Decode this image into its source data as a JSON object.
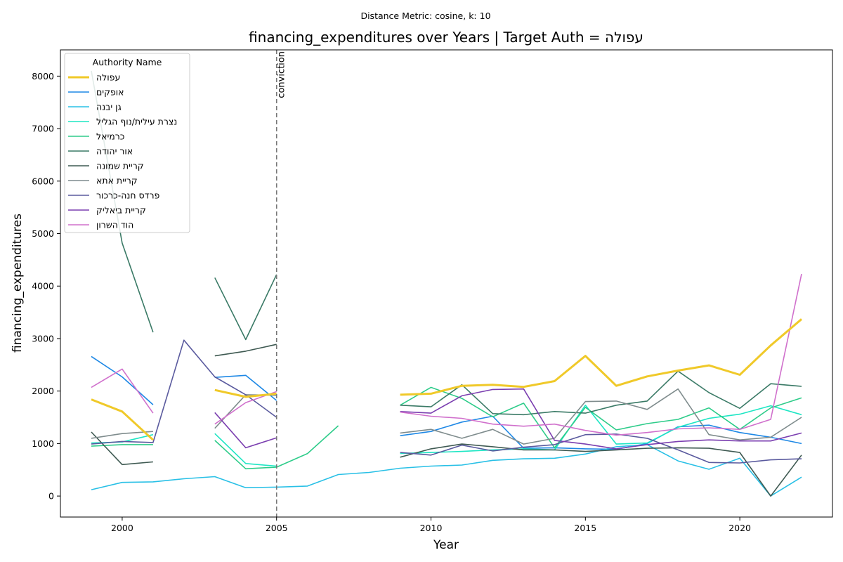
{
  "chart_data": {
    "type": "line",
    "suptitle": "Distance Metric: cosine, k: 10",
    "title": "financing_expenditures over Years | Target Auth = עפולה",
    "xlabel": "Year",
    "ylabel": "financing_expenditures",
    "xlim": [
      1998,
      2023
    ],
    "ylim": [
      -400,
      8500
    ],
    "x_ticks": [
      2000,
      2005,
      2010,
      2015,
      2020
    ],
    "y_ticks": [
      0,
      1000,
      2000,
      3000,
      4000,
      5000,
      6000,
      7000,
      8000
    ],
    "grid": false,
    "legend": {
      "title": "Authority Name",
      "position": "top-left"
    },
    "annotation": {
      "x": 2005,
      "label": "conviction",
      "style": "dashed"
    },
    "series": [
      {
        "name": "עפולה",
        "color": "#f0c929",
        "width": 3,
        "points": [
          [
            1999,
            1840
          ],
          [
            2000,
            1610
          ],
          [
            2001,
            1070
          ],
          [
            null,
            null
          ],
          [
            2003,
            2020
          ],
          [
            2004,
            1890
          ],
          [
            2005,
            1950
          ],
          [
            null,
            null
          ],
          [
            2009,
            1930
          ],
          [
            2010,
            1950
          ],
          [
            2011,
            2100
          ],
          [
            2012,
            2120
          ],
          [
            2013,
            2080
          ],
          [
            2014,
            2190
          ],
          [
            2015,
            2670
          ],
          [
            2016,
            2100
          ],
          [
            2017,
            2280
          ],
          [
            2018,
            2390
          ],
          [
            2019,
            2490
          ],
          [
            2020,
            2310
          ],
          [
            2021,
            2870
          ],
          [
            2022,
            3370
          ]
        ]
      },
      {
        "name": "אופקים",
        "color": "#1e88e5",
        "width": 1.6,
        "points": [
          [
            1999,
            2660
          ],
          [
            2000,
            2270
          ],
          [
            2001,
            1740
          ],
          [
            null,
            null
          ],
          [
            2003,
            2260
          ],
          [
            2004,
            2300
          ],
          [
            2005,
            1820
          ],
          [
            null,
            null
          ],
          [
            2009,
            1150
          ],
          [
            2010,
            1230
          ],
          [
            2011,
            1410
          ],
          [
            2012,
            1520
          ],
          [
            2013,
            910
          ],
          [
            2014,
            920
          ],
          [
            2015,
            900
          ],
          [
            2016,
            890
          ],
          [
            2017,
            1000
          ],
          [
            2018,
            1320
          ],
          [
            2019,
            1350
          ],
          [
            2020,
            1210
          ],
          [
            2021,
            1120
          ],
          [
            2022,
            1000
          ]
        ]
      },
      {
        "name": "גן יבנה",
        "color": "#29c0e6",
        "width": 1.6,
        "points": [
          [
            1999,
            120
          ],
          [
            2000,
            260
          ],
          [
            2001,
            270
          ],
          [
            2002,
            330
          ],
          [
            2003,
            370
          ],
          [
            2004,
            160
          ],
          [
            2005,
            170
          ],
          [
            2006,
            190
          ],
          [
            2007,
            410
          ],
          [
            2008,
            450
          ],
          [
            2009,
            530
          ],
          [
            2010,
            570
          ],
          [
            2011,
            590
          ],
          [
            2012,
            680
          ],
          [
            2013,
            710
          ],
          [
            2014,
            720
          ],
          [
            2015,
            800
          ],
          [
            2016,
            940
          ],
          [
            2017,
            980
          ],
          [
            2018,
            670
          ],
          [
            2019,
            510
          ],
          [
            2020,
            720
          ],
          [
            2021,
            0
          ],
          [
            2022,
            360
          ]
        ]
      },
      {
        "name": "נצרת עילית/נוף הגליל",
        "color": "#1ee6c4",
        "width": 1.6,
        "points": [
          [
            1999,
            1010
          ],
          [
            2000,
            1030
          ],
          [
            2001,
            1170
          ],
          [
            null,
            null
          ],
          [
            2003,
            1190
          ],
          [
            2004,
            620
          ],
          [
            2005,
            570
          ],
          [
            null,
            null
          ],
          [
            2009,
            810
          ],
          [
            2010,
            830
          ],
          [
            2011,
            850
          ],
          [
            2012,
            880
          ],
          [
            2013,
            900
          ],
          [
            2014,
            880
          ],
          [
            2015,
            1730
          ],
          [
            2016,
            990
          ],
          [
            2017,
            1010
          ],
          [
            2018,
            1310
          ],
          [
            2019,
            1480
          ],
          [
            2020,
            1560
          ],
          [
            2021,
            1720
          ],
          [
            2022,
            1550
          ]
        ]
      },
      {
        "name": "כרמיאל",
        "color": "#2ecc8a",
        "width": 1.6,
        "points": [
          [
            1999,
            950
          ],
          [
            2000,
            980
          ],
          [
            2001,
            980
          ],
          [
            null,
            null
          ],
          [
            2003,
            1060
          ],
          [
            2004,
            520
          ],
          [
            2005,
            550
          ],
          [
            2006,
            810
          ],
          [
            2007,
            1340
          ],
          [
            null,
            null
          ],
          [
            2009,
            1730
          ],
          [
            2010,
            2070
          ],
          [
            2011,
            1860
          ],
          [
            2012,
            1510
          ],
          [
            2013,
            1770
          ],
          [
            2014,
            920
          ],
          [
            2015,
            1690
          ],
          [
            2016,
            1260
          ],
          [
            2017,
            1380
          ],
          [
            2018,
            1460
          ],
          [
            2019,
            1680
          ],
          [
            2020,
            1270
          ],
          [
            2021,
            1680
          ],
          [
            2022,
            1870
          ]
        ]
      },
      {
        "name": "אור יהודה",
        "color": "#3a7a66",
        "width": 1.6,
        "points": [
          [
            1999,
            8100
          ],
          [
            2000,
            4820
          ],
          [
            2001,
            3120
          ],
          [
            null,
            null
          ],
          [
            2003,
            4160
          ],
          [
            2004,
            2980
          ],
          [
            2005,
            4220
          ],
          [
            null,
            null
          ],
          [
            2009,
            1730
          ],
          [
            2010,
            1700
          ],
          [
            2011,
            2120
          ],
          [
            2012,
            1570
          ],
          [
            2013,
            1550
          ],
          [
            2014,
            1610
          ],
          [
            2015,
            1580
          ],
          [
            2016,
            1730
          ],
          [
            2017,
            1810
          ],
          [
            2018,
            2380
          ],
          [
            2019,
            1970
          ],
          [
            2020,
            1670
          ],
          [
            2021,
            2140
          ],
          [
            2022,
            2090
          ]
        ]
      },
      {
        "name": "קריית שמונה",
        "color": "#3f5a52",
        "width": 1.6,
        "points": [
          [
            1999,
            1220
          ],
          [
            2000,
            600
          ],
          [
            2001,
            650
          ],
          [
            null,
            null
          ],
          [
            2003,
            2670
          ],
          [
            2004,
            2760
          ],
          [
            2005,
            2890
          ],
          [
            null,
            null
          ],
          [
            2009,
            740
          ],
          [
            2010,
            900
          ],
          [
            2011,
            990
          ],
          [
            2012,
            940
          ],
          [
            2013,
            880
          ],
          [
            2014,
            880
          ],
          [
            2015,
            850
          ],
          [
            2016,
            880
          ],
          [
            2017,
            910
          ],
          [
            2018,
            920
          ],
          [
            2019,
            910
          ],
          [
            2020,
            830
          ],
          [
            2021,
            0
          ],
          [
            2022,
            780
          ]
        ]
      },
      {
        "name": "קריית אתא",
        "color": "#7f8c8d",
        "width": 1.6,
        "points": [
          [
            1999,
            1100
          ],
          [
            2000,
            1190
          ],
          [
            2001,
            1230
          ],
          [
            null,
            null
          ],
          [
            2003,
            1290
          ],
          [
            2004,
            1930
          ],
          [
            2005,
            1920
          ],
          [
            null,
            null
          ],
          [
            2009,
            1200
          ],
          [
            2010,
            1270
          ],
          [
            2011,
            1100
          ],
          [
            2012,
            1270
          ],
          [
            2013,
            990
          ],
          [
            2014,
            1100
          ],
          [
            2015,
            1800
          ],
          [
            2016,
            1810
          ],
          [
            2017,
            1650
          ],
          [
            2018,
            2040
          ],
          [
            2019,
            1170
          ],
          [
            2020,
            1070
          ],
          [
            2021,
            1120
          ],
          [
            2022,
            1500
          ]
        ]
      },
      {
        "name": "פרדס חנה-כרכור",
        "color": "#5a5a9e",
        "width": 1.6,
        "points": [
          [
            1999,
            990
          ],
          [
            2000,
            1040
          ],
          [
            2001,
            1020
          ],
          [
            2002,
            2970
          ],
          [
            2003,
            2270
          ],
          [
            2004,
            1930
          ],
          [
            2005,
            1500
          ],
          [
            null,
            null
          ],
          [
            2009,
            830
          ],
          [
            2010,
            780
          ],
          [
            2011,
            970
          ],
          [
            2012,
            860
          ],
          [
            2013,
            930
          ],
          [
            2014,
            980
          ],
          [
            2015,
            1170
          ],
          [
            2016,
            1180
          ],
          [
            2017,
            1100
          ],
          [
            2018,
            880
          ],
          [
            2019,
            640
          ],
          [
            2020,
            630
          ],
          [
            2021,
            690
          ],
          [
            2022,
            710
          ]
        ]
      },
      {
        "name": "קריית ביאליק",
        "color": "#7b3fb0",
        "width": 1.6,
        "points": [
          [
            null,
            null
          ],
          [
            2003,
            1590
          ],
          [
            2004,
            920
          ],
          [
            2005,
            1110
          ],
          [
            null,
            null
          ],
          [
            2009,
            1610
          ],
          [
            2010,
            1580
          ],
          [
            2011,
            1910
          ],
          [
            2012,
            2030
          ],
          [
            2013,
            2040
          ],
          [
            2014,
            1060
          ],
          [
            2015,
            990
          ],
          [
            2016,
            900
          ],
          [
            2017,
            980
          ],
          [
            2018,
            1040
          ],
          [
            2019,
            1070
          ],
          [
            2020,
            1050
          ],
          [
            2021,
            1050
          ],
          [
            2022,
            1200
          ]
        ]
      },
      {
        "name": "הוד השרון",
        "color": "#d070cc",
        "width": 1.6,
        "points": [
          [
            1999,
            2070
          ],
          [
            2000,
            2420
          ],
          [
            2001,
            1580
          ],
          [
            null,
            null
          ],
          [
            2003,
            1370
          ],
          [
            2004,
            1780
          ],
          [
            2005,
            1990
          ],
          [
            null,
            null
          ],
          [
            2009,
            1600
          ],
          [
            2010,
            1520
          ],
          [
            2011,
            1480
          ],
          [
            2012,
            1370
          ],
          [
            2013,
            1330
          ],
          [
            2014,
            1370
          ],
          [
            2015,
            1250
          ],
          [
            2016,
            1160
          ],
          [
            2017,
            1210
          ],
          [
            2018,
            1280
          ],
          [
            2019,
            1300
          ],
          [
            2020,
            1270
          ],
          [
            2021,
            1460
          ],
          [
            2022,
            4230
          ]
        ]
      }
    ]
  }
}
